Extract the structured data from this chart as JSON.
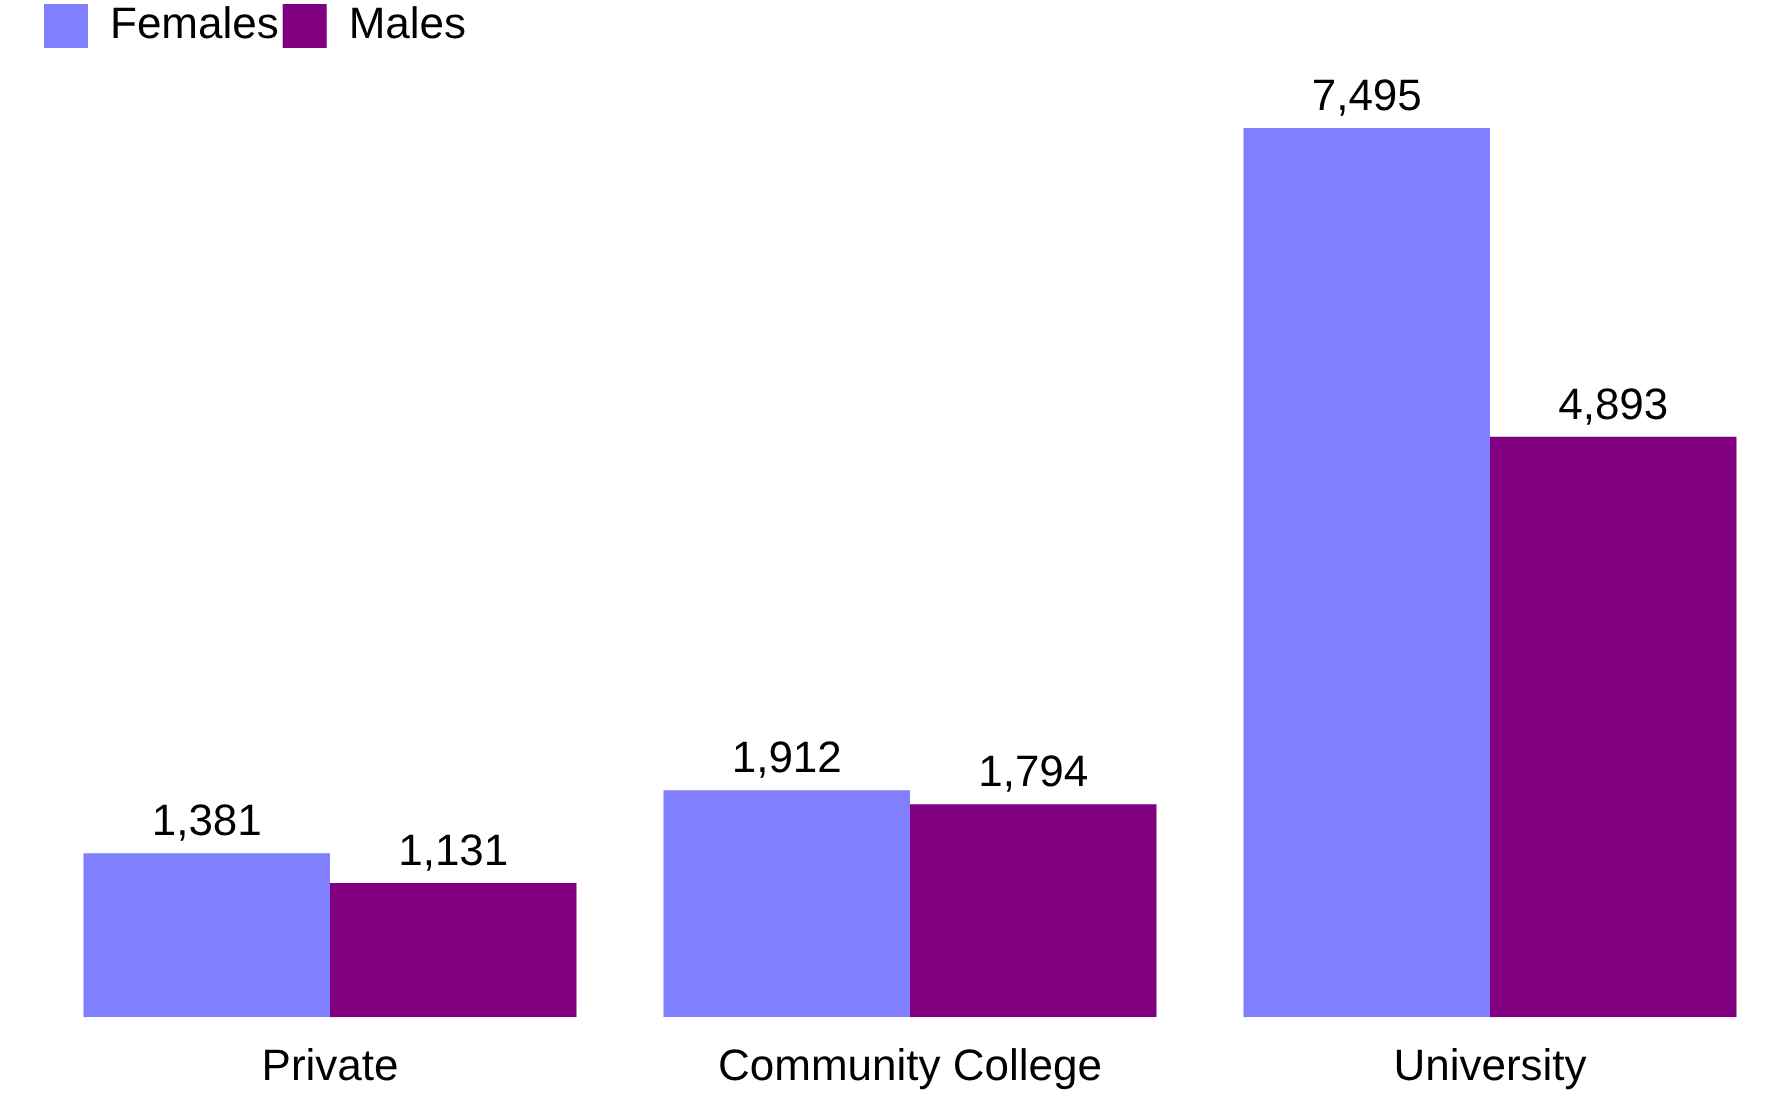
{
  "chart_data": {
    "type": "bar",
    "categories": [
      "Private",
      "Community College",
      "University"
    ],
    "series": [
      {
        "name": "Females",
        "color": "#8080ff",
        "values": [
          1381,
          1912,
          7495
        ],
        "value_labels": [
          "1,381",
          "1,912",
          "7,495"
        ]
      },
      {
        "name": "Males",
        "color": "#800080",
        "values": [
          1131,
          1794,
          4893
        ],
        "value_labels": [
          "1,131",
          "1,794",
          "4,893"
        ]
      }
    ],
    "legend": "top left",
    "grid": false
  }
}
